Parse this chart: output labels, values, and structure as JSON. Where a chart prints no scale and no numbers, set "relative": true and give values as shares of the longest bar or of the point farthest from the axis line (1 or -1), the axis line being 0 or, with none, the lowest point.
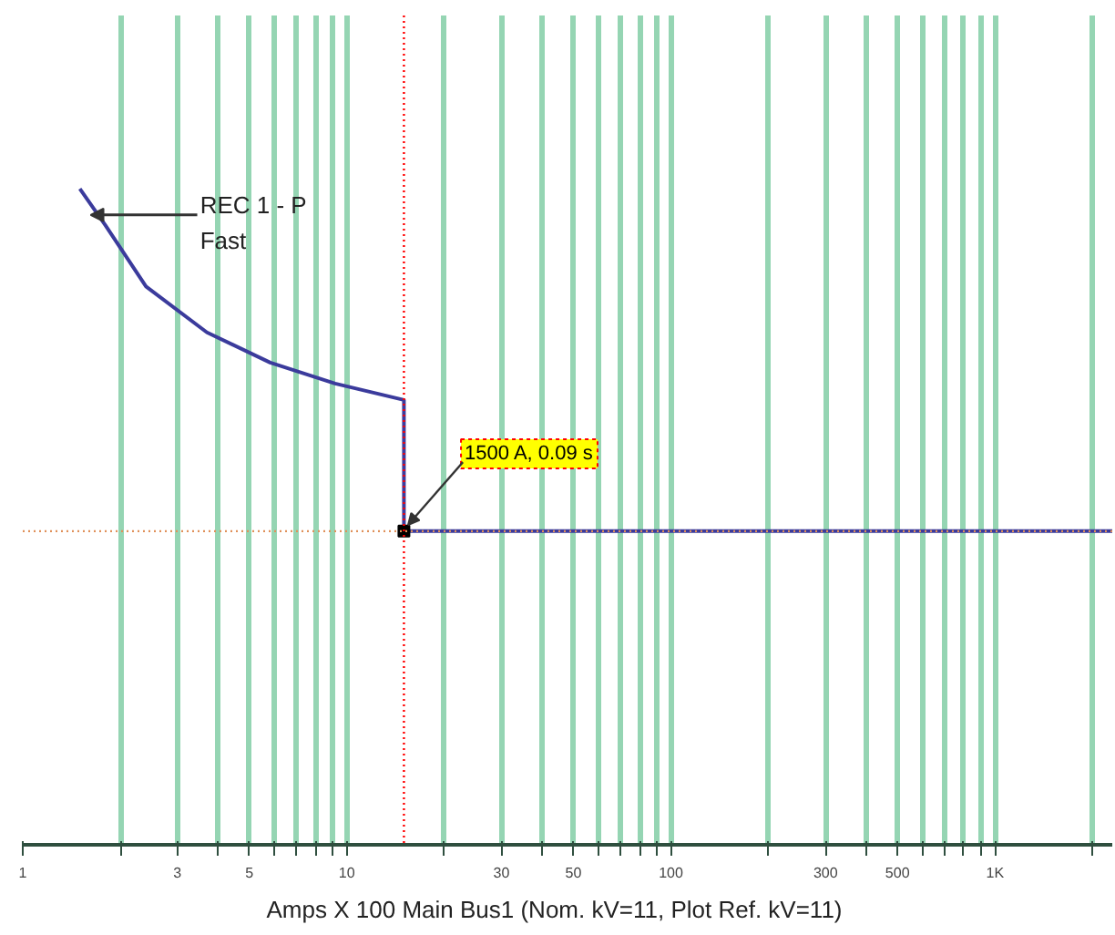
{
  "chart_data": {
    "type": "line",
    "xlabel": "Amps  X  100   Main Bus1 (Nom. kV=11, Plot Ref. kV=11)",
    "log": "x",
    "xlim": [
      1,
      2300
    ],
    "relative": true,
    "xticks": [
      1,
      {
        "value": 2,
        "label": null
      },
      3,
      {
        "value": 4,
        "label": null
      },
      5,
      {
        "value": 6,
        "label": null
      },
      {
        "value": 7,
        "label": null
      },
      {
        "value": 8,
        "label": null
      },
      {
        "value": 9,
        "label": null
      },
      10,
      {
        "value": 20,
        "label": null
      },
      30,
      {
        "value": 40,
        "label": null
      },
      50,
      {
        "value": 60,
        "label": null
      },
      {
        "value": 70,
        "label": null
      },
      {
        "value": 80,
        "label": null
      },
      {
        "value": 90,
        "label": null
      },
      100,
      {
        "value": 200,
        "label": null
      },
      300,
      {
        "value": 400,
        "label": null
      },
      500,
      {
        "value": 600,
        "label": null
      },
      {
        "value": 700,
        "label": null
      },
      {
        "value": 800,
        "label": null
      },
      {
        "value": 900,
        "label": null
      },
      {
        "value": 1000,
        "label": "1K"
      },
      {
        "value": 2000,
        "label": null
      }
    ],
    "tick_labels": "x",
    "grid": "x",
    "series": [
      {
        "name": "REC  1 - P\nFast",
        "color": "#3b3b9c",
        "x": [
          1.5,
          1.8,
          2.4,
          3.7,
          5.8,
          9.2,
          15,
          15,
          2300
        ],
        "values": [
          1,
          0.944,
          0.851,
          0.781,
          0.735,
          0.703,
          0.678,
          0.478,
          0.478
        ]
      }
    ],
    "ref_lines": [
      {
        "axis": "x",
        "value": 15,
        "label": null,
        "color": "#ff0000",
        "line_style": "dotted"
      },
      {
        "axis": "y",
        "value": 0.478,
        "label": null,
        "color": "#e0905a",
        "line_style": "dotted"
      }
    ],
    "annotations": [
      {
        "text": "1500 A, 0.09 s",
        "x": 15,
        "y": 0.478
      }
    ]
  }
}
